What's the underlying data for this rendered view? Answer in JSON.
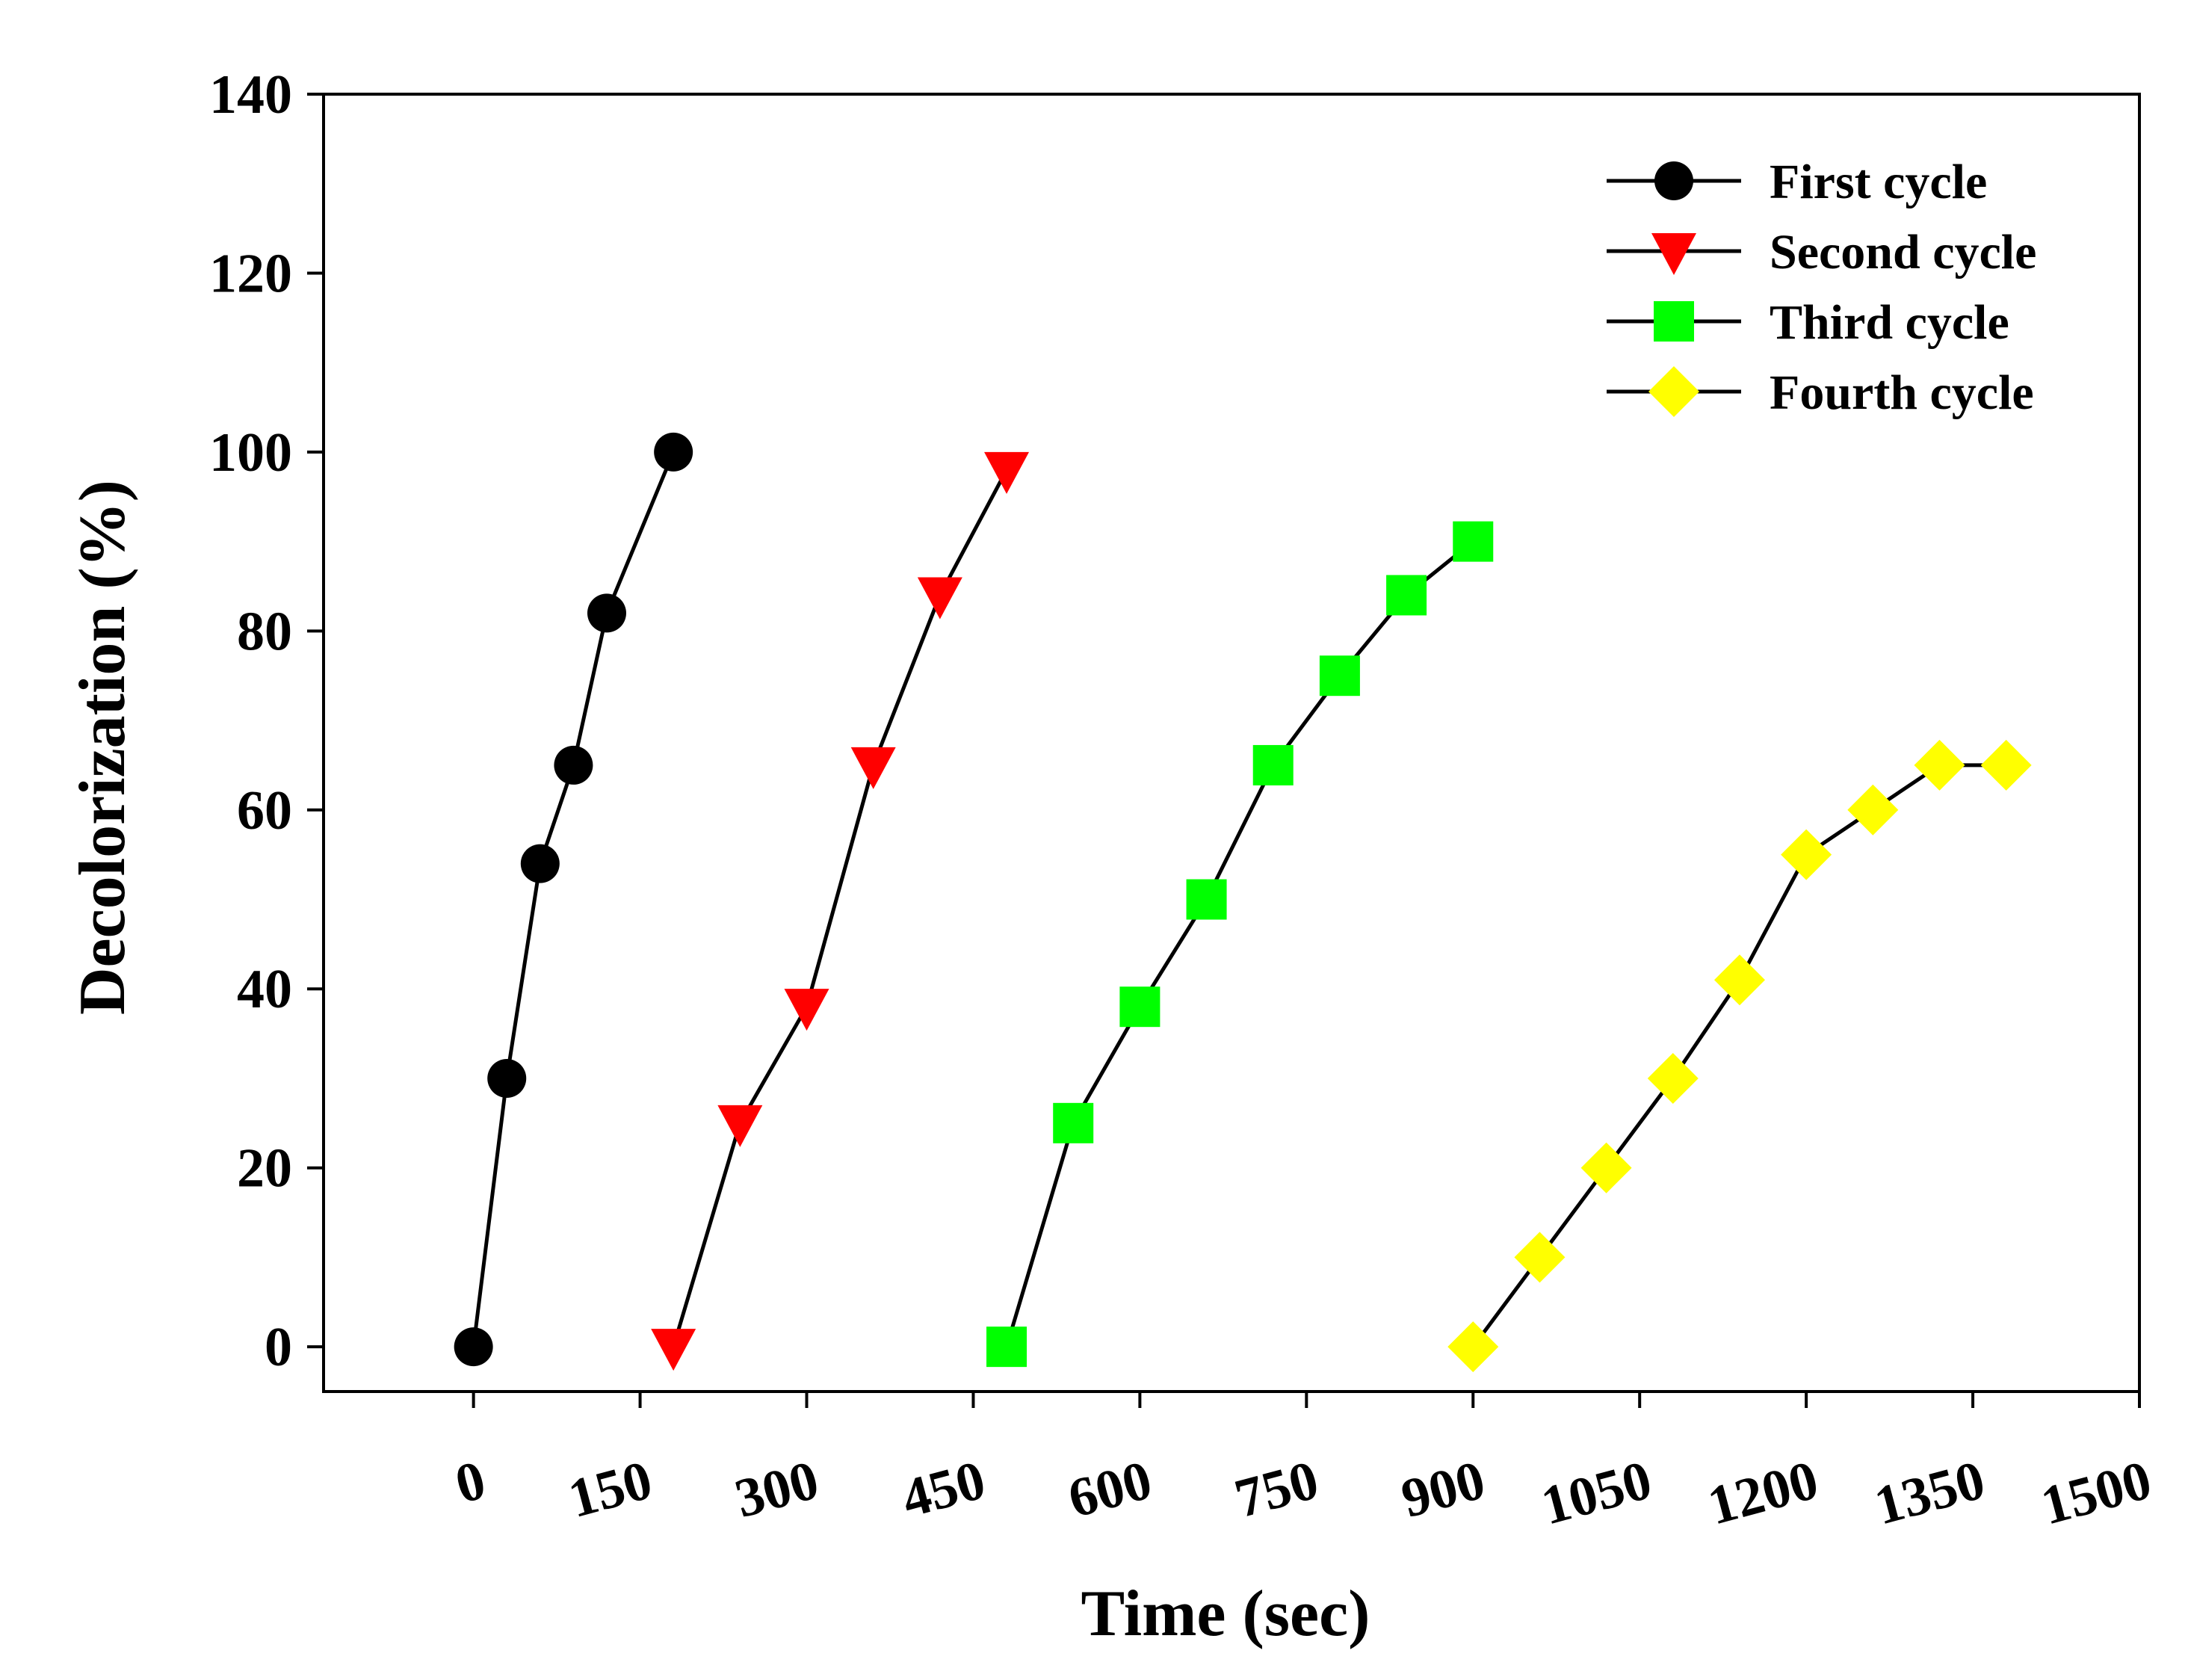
{
  "chart_data": {
    "type": "line",
    "title": "",
    "xlabel": "Time (sec)",
    "ylabel": "Decolorization (%)",
    "xlim": [
      -135,
      1500
    ],
    "ylim": [
      -5,
      140
    ],
    "x_ticks": [
      0,
      150,
      300,
      450,
      600,
      750,
      900,
      1050,
      1200,
      1350,
      1500
    ],
    "x_tick_labels": [
      "0",
      "150",
      "300",
      "450",
      "600",
      "750",
      "900",
      "1050",
      "1200",
      "1350",
      "1500"
    ],
    "y_ticks": [
      0,
      20,
      40,
      60,
      80,
      100,
      120,
      140
    ],
    "y_tick_labels": [
      "0",
      "20",
      "40",
      "60",
      "80",
      "100",
      "120",
      "140"
    ],
    "grid": false,
    "legend_position": "top-right",
    "series": [
      {
        "name": "First cycle",
        "marker": "circle",
        "color": "#000000",
        "x": [
          0,
          30,
          60,
          90,
          120,
          180
        ],
        "values": [
          0,
          30,
          54,
          65,
          82,
          100
        ]
      },
      {
        "name": "Second cycle",
        "marker": "triangle-down",
        "color": "#ff0000",
        "x": [
          180,
          240,
          300,
          360,
          420,
          480
        ],
        "values": [
          0,
          25,
          38,
          65,
          84,
          98
        ]
      },
      {
        "name": "Third cycle",
        "marker": "square",
        "color": "#00ff00",
        "x": [
          480,
          540,
          600,
          660,
          720,
          780,
          840,
          900
        ],
        "values": [
          0,
          25,
          38,
          50,
          65,
          75,
          84,
          90
        ]
      },
      {
        "name": "Fourth cycle",
        "marker": "diamond",
        "color": "#ffff00",
        "x": [
          900,
          960,
          1020,
          1080,
          1140,
          1200,
          1260,
          1320,
          1380
        ],
        "values": [
          0,
          10,
          20,
          30,
          41,
          55,
          60,
          65,
          65
        ]
      }
    ]
  }
}
